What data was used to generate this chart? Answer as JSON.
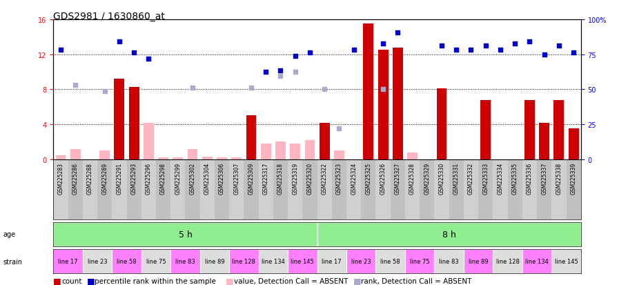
{
  "title": "GDS2981 / 1630860_at",
  "samples": [
    "GSM225283",
    "GSM225286",
    "GSM225288",
    "GSM225289",
    "GSM225291",
    "GSM225293",
    "GSM225296",
    "GSM225298",
    "GSM225299",
    "GSM225302",
    "GSM225304",
    "GSM225306",
    "GSM225307",
    "GSM225309",
    "GSM225317",
    "GSM225318",
    "GSM225319",
    "GSM225320",
    "GSM225322",
    "GSM225323",
    "GSM225324",
    "GSM225325",
    "GSM225326",
    "GSM225327",
    "GSM225328",
    "GSM225329",
    "GSM225330",
    "GSM225331",
    "GSM225332",
    "GSM225333",
    "GSM225334",
    "GSM225335",
    "GSM225336",
    "GSM225337",
    "GSM225338",
    "GSM225339"
  ],
  "count": [
    null,
    null,
    null,
    null,
    9.2,
    8.3,
    null,
    null,
    null,
    null,
    null,
    null,
    null,
    5.0,
    null,
    null,
    null,
    null,
    4.2,
    null,
    null,
    15.5,
    12.5,
    12.8,
    null,
    null,
    8.1,
    null,
    null,
    6.8,
    null,
    null,
    6.8,
    4.2,
    6.8,
    3.5
  ],
  "count_absent": [
    0.5,
    1.2,
    null,
    1.0,
    null,
    null,
    4.2,
    0.2,
    0.2,
    1.2,
    0.3,
    0.2,
    0.2,
    null,
    1.8,
    2.0,
    1.8,
    2.2,
    null,
    1.0,
    null,
    null,
    null,
    null,
    0.8,
    null,
    null,
    null,
    null,
    null,
    null,
    null,
    null,
    null,
    null,
    null
  ],
  "rank": [
    12.5,
    null,
    null,
    null,
    13.5,
    12.2,
    11.5,
    null,
    null,
    null,
    null,
    null,
    null,
    null,
    10.0,
    10.2,
    11.8,
    12.2,
    null,
    null,
    12.5,
    null,
    13.2,
    14.5,
    null,
    null,
    13.0,
    12.5,
    12.5,
    13.0,
    12.5,
    13.2,
    13.5,
    12.0,
    13.0,
    12.2
  ],
  "rank_absent": [
    null,
    8.5,
    null,
    7.8,
    null,
    null,
    null,
    null,
    null,
    8.2,
    null,
    null,
    null,
    8.2,
    null,
    9.5,
    10.0,
    null,
    8.0,
    3.5,
    null,
    null,
    8.0,
    null,
    null,
    null,
    null,
    null,
    null,
    null,
    null,
    null,
    null,
    null,
    null,
    null
  ],
  "age_groups": [
    {
      "label": "5 h",
      "start": 0,
      "end": 18,
      "color": "#90EE90"
    },
    {
      "label": "8 h",
      "start": 18,
      "end": 36,
      "color": "#90EE90"
    }
  ],
  "strain_labels": [
    {
      "label": "line 17",
      "start": 0,
      "end": 2,
      "color": "#FF80FF"
    },
    {
      "label": "line 23",
      "start": 2,
      "end": 4,
      "color": "#DDDDDD"
    },
    {
      "label": "line 58",
      "start": 4,
      "end": 6,
      "color": "#FF80FF"
    },
    {
      "label": "line 75",
      "start": 6,
      "end": 8,
      "color": "#DDDDDD"
    },
    {
      "label": "line 83",
      "start": 8,
      "end": 10,
      "color": "#FF80FF"
    },
    {
      "label": "line 89",
      "start": 10,
      "end": 12,
      "color": "#DDDDDD"
    },
    {
      "label": "line 128",
      "start": 12,
      "end": 14,
      "color": "#FF80FF"
    },
    {
      "label": "line 134",
      "start": 14,
      "end": 16,
      "color": "#DDDDDD"
    },
    {
      "label": "line 145",
      "start": 16,
      "end": 18,
      "color": "#FF80FF"
    },
    {
      "label": "line 17",
      "start": 18,
      "end": 20,
      "color": "#DDDDDD"
    },
    {
      "label": "line 23",
      "start": 20,
      "end": 22,
      "color": "#FF80FF"
    },
    {
      "label": "line 58",
      "start": 22,
      "end": 24,
      "color": "#DDDDDD"
    },
    {
      "label": "line 75",
      "start": 24,
      "end": 26,
      "color": "#FF80FF"
    },
    {
      "label": "line 83",
      "start": 26,
      "end": 28,
      "color": "#DDDDDD"
    },
    {
      "label": "line 89",
      "start": 28,
      "end": 30,
      "color": "#FF80FF"
    },
    {
      "label": "line 128",
      "start": 30,
      "end": 32,
      "color": "#DDDDDD"
    },
    {
      "label": "line 134",
      "start": 32,
      "end": 34,
      "color": "#FF80FF"
    },
    {
      "label": "line 145",
      "start": 34,
      "end": 36,
      "color": "#DDDDDD"
    }
  ],
  "ylim_left": [
    0,
    16
  ],
  "ylim_right": [
    0,
    100
  ],
  "yticks_left": [
    0,
    4,
    8,
    12,
    16
  ],
  "yticks_right": [
    0,
    25,
    50,
    75,
    100
  ],
  "bar_color": "#CC0000",
  "bar_absent_color": "#FFB6C1",
  "rank_color": "#0000CC",
  "rank_absent_color": "#AAAACC",
  "title_fontsize": 10,
  "tick_fontsize": 7,
  "sample_fontsize": 5.5,
  "legend_fontsize": 7.5
}
